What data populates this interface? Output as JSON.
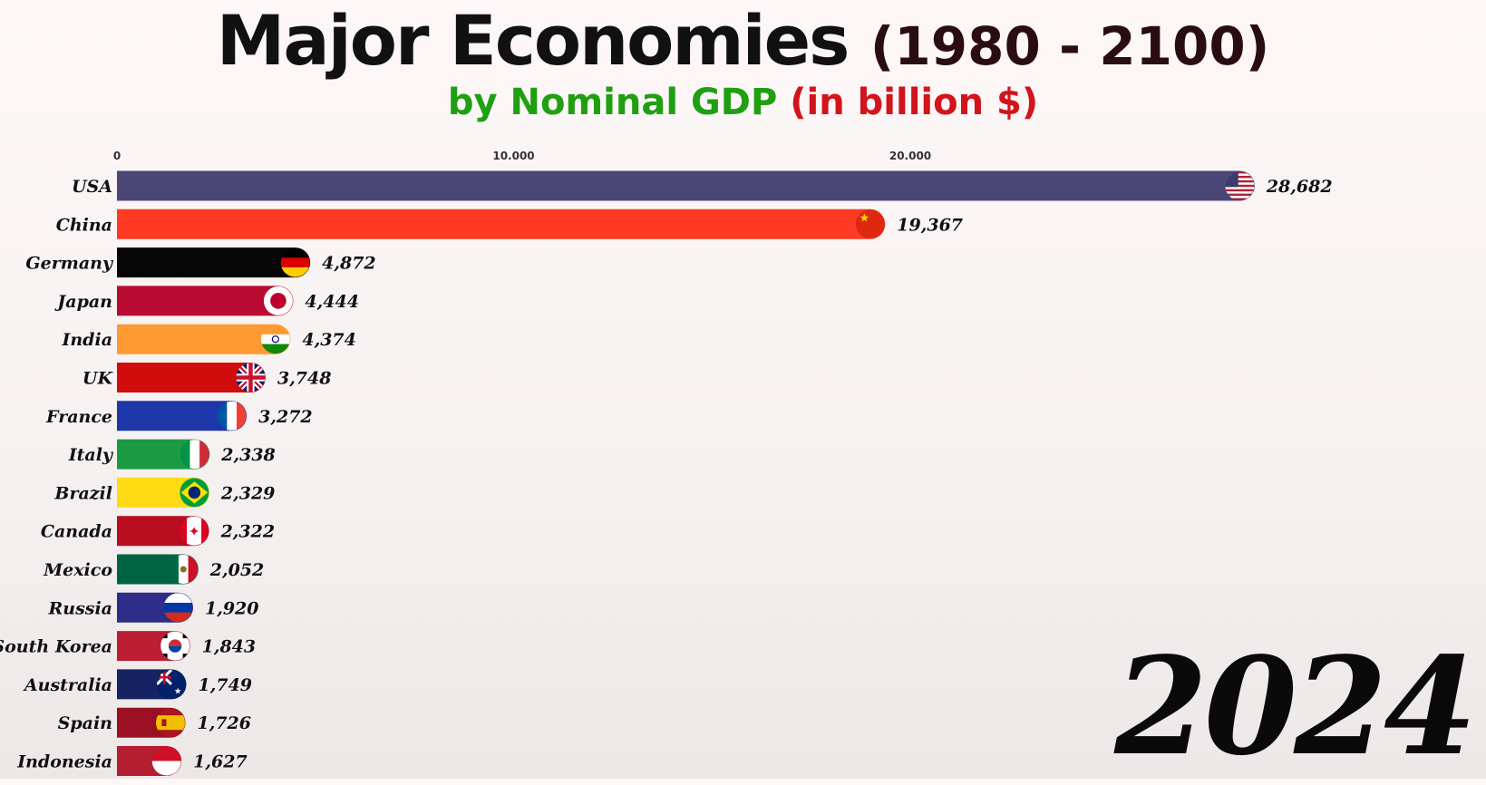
{
  "header": {
    "title": "Major Economies",
    "title_years": "(1980 - 2100)",
    "subtitle_green": "by Nominal GDP",
    "subtitle_red": "(in billion $)"
  },
  "year": "2024",
  "chart_data": {
    "type": "bar",
    "orientation": "horizontal",
    "title": "Major Economies (1980 - 2100)",
    "subtitle": "by Nominal GDP (in billion $)",
    "xlim": [
      0,
      30000
    ],
    "x_ticks": [
      0,
      10000,
      20000
    ],
    "x_tick_labels": [
      "0",
      "10.000",
      "20.000"
    ],
    "categories": [
      "USA",
      "China",
      "Germany",
      "Japan",
      "India",
      "UK",
      "France",
      "Italy",
      "Brazil",
      "Canada",
      "Mexico",
      "Russia",
      "South Korea",
      "Australia",
      "Spain",
      "Indonesia"
    ],
    "values": [
      28682,
      19367,
      4872,
      4444,
      4374,
      3748,
      3272,
      2338,
      2329,
      2322,
      2052,
      1920,
      1843,
      1749,
      1726,
      1627
    ],
    "value_labels": [
      "28,682",
      "19,367",
      "4,872",
      "4,444",
      "4,374",
      "3,748",
      "3,272",
      "2,338",
      "2,329",
      "2,322",
      "2,052",
      "1,920",
      "1,843",
      "1,749",
      "1,726",
      "1,627"
    ],
    "colors": [
      "#4a4676",
      "#ff3a22",
      "#050505",
      "#b90b32",
      "#ff9a32",
      "#d00c0c",
      "#1e37a8",
      "#1a9b43",
      "#ffdb14",
      "#b80d1f",
      "#006442",
      "#2e2e8a",
      "#bb1e33",
      "#152363",
      "#9a1022",
      "#b51e30"
    ],
    "flags": [
      "usa-flag",
      "china-flag",
      "germany-flag",
      "japan-flag",
      "india-flag",
      "uk-flag",
      "france-flag",
      "italy-flag",
      "brazil-flag",
      "canada-flag",
      "mexico-flag",
      "russia-flag",
      "south-korea-flag",
      "australia-flag",
      "spain-flag",
      "indonesia-flag"
    ],
    "grid": false,
    "legend": "none"
  }
}
